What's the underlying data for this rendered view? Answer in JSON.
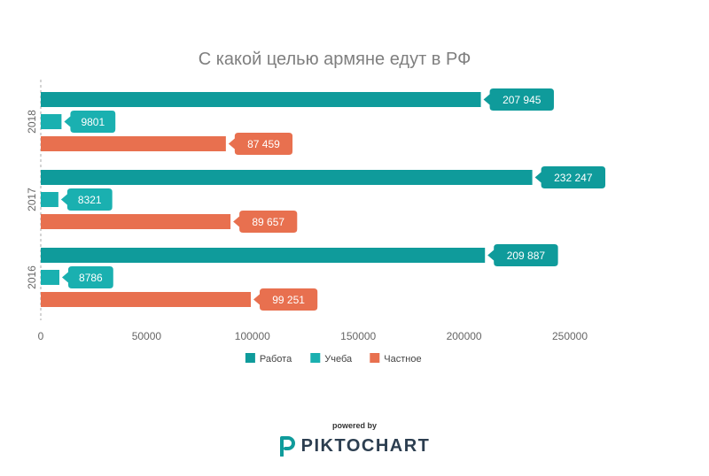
{
  "chart_data": {
    "type": "bar",
    "orientation": "horizontal",
    "title": "С какой целью армяне едут в РФ",
    "categories": [
      "2018",
      "2017",
      "2016"
    ],
    "series": [
      {
        "name": "Работа",
        "color": "#0f9b9b",
        "values": [
          207945,
          232247,
          209887
        ],
        "labels": [
          "207 945",
          "232 247",
          "209 887"
        ]
      },
      {
        "name": "Учеба",
        "color": "#1ab0b0",
        "values": [
          9801,
          8321,
          8786
        ],
        "labels": [
          "9801",
          "8321",
          "8786"
        ]
      },
      {
        "name": "Частное",
        "color": "#e8704f",
        "values": [
          87459,
          89657,
          99251
        ],
        "labels": [
          "87 459",
          "89 657",
          "99 251"
        ]
      }
    ],
    "x_ticks": [
      0,
      50000,
      100000,
      150000,
      200000,
      250000
    ],
    "xlim": [
      0,
      250000
    ],
    "legend_position": "bottom-center",
    "grid": false,
    "data_labels": true
  },
  "branding": {
    "powered_by": "powered by",
    "name": "PIKTOCHART",
    "logo_icon": "piktochart-logo-icon",
    "logo_color": "#0f9b9b",
    "text_color": "#2c3e50"
  }
}
